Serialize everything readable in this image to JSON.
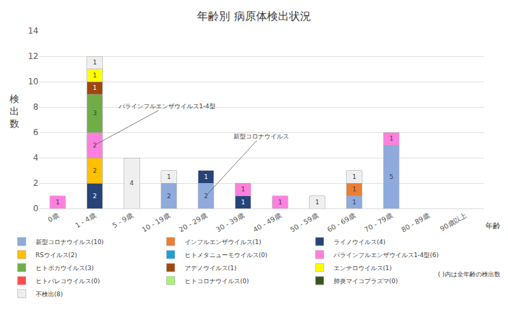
{
  "chart_data": {
    "type": "bar",
    "title": "年齢別 病原体検出状況",
    "x_label": "年齢",
    "y_label": "検出数",
    "categories": [
      "0歳",
      "1 - 4歳",
      "5 - 9歳",
      "10 - 19歳",
      "20 - 29歳",
      "30 - 39歳",
      "40 - 49歳",
      "50 - 59歳",
      "60 - 69歳",
      "70 - 79歳",
      "80 - 89歳",
      "90歳以上"
    ],
    "stacked": true,
    "data_labels": true,
    "grid": true,
    "legend": "bottom",
    "ylim": [
      0,
      14
    ],
    "yticks": [
      0,
      2,
      4,
      6,
      8,
      10,
      12,
      14
    ],
    "series": [
      {
        "name": "新型コロナウイルス(10)",
        "color": "#8faadc",
        "values": [
          null,
          null,
          null,
          2,
          2,
          null,
          null,
          null,
          1,
          5,
          null,
          null
        ]
      },
      {
        "name": "インフルエンザウイルス(1)",
        "color": "#ed7d31",
        "values": [
          null,
          null,
          null,
          null,
          null,
          null,
          null,
          null,
          1,
          null,
          null,
          null
        ]
      },
      {
        "name": "ライノウイルス(4)",
        "color": "#264478",
        "values": [
          null,
          2,
          null,
          null,
          1,
          1,
          null,
          null,
          null,
          null,
          null,
          null
        ]
      },
      {
        "name": "RSウイルス(2)",
        "color": "#ffc000",
        "values": [
          null,
          2,
          null,
          null,
          null,
          null,
          null,
          null,
          null,
          null,
          null,
          null
        ]
      },
      {
        "name": "ヒトメタニューモウイルス(0)",
        "color": "#1a9fd9",
        "values": [
          null,
          null,
          null,
          null,
          null,
          null,
          null,
          null,
          null,
          null,
          null,
          null
        ]
      },
      {
        "name": "パラインフルエンザウイルス1-4型(6)",
        "color": "#ff7fdf",
        "values": [
          1,
          2,
          null,
          null,
          null,
          1,
          1,
          null,
          null,
          1,
          null,
          null
        ]
      },
      {
        "name": "ヒトボカウイルス(3)",
        "color": "#70ad47",
        "values": [
          null,
          3,
          null,
          null,
          null,
          null,
          null,
          null,
          null,
          null,
          null,
          null
        ]
      },
      {
        "name": "アデノウイルス(1)",
        "color": "#9e480e",
        "values": [
          null,
          1,
          null,
          null,
          null,
          null,
          null,
          null,
          null,
          null,
          null,
          null
        ]
      },
      {
        "name": "エンテロウイルス(1)",
        "color": "#ffff00",
        "values": [
          null,
          1,
          null,
          null,
          null,
          null,
          null,
          null,
          null,
          null,
          null,
          null
        ]
      },
      {
        "name": "ヒトパレコウイルス(0)",
        "color": "#ff4b4b",
        "values": [
          null,
          null,
          null,
          null,
          null,
          null,
          null,
          null,
          null,
          null,
          null,
          null
        ]
      },
      {
        "name": "ヒトコロナウイルス(0)",
        "color": "#a9f17a",
        "values": [
          null,
          null,
          null,
          null,
          null,
          null,
          null,
          null,
          null,
          null,
          null,
          null
        ]
      },
      {
        "name": "肺炎マイコプラズマ(0)",
        "color": "#375623",
        "values": [
          null,
          null,
          null,
          null,
          null,
          null,
          null,
          null,
          null,
          null,
          null,
          null
        ]
      },
      {
        "name": "不検出(8)",
        "color": "#efefef",
        "values": [
          null,
          1,
          4,
          1,
          null,
          null,
          null,
          1,
          1,
          null,
          null,
          null
        ]
      }
    ],
    "annotations": [
      {
        "text": "パラインフルエンザウイルス1-4型",
        "category": "1 - 4歳",
        "series": "パラインフルエンザウイルス1-4型(6)"
      },
      {
        "text": "新型コロナウイルス",
        "category": "20 - 29歳",
        "series": "新型コロナウイルス(10)"
      }
    ],
    "note": "( )内は全年齢の検出数"
  }
}
